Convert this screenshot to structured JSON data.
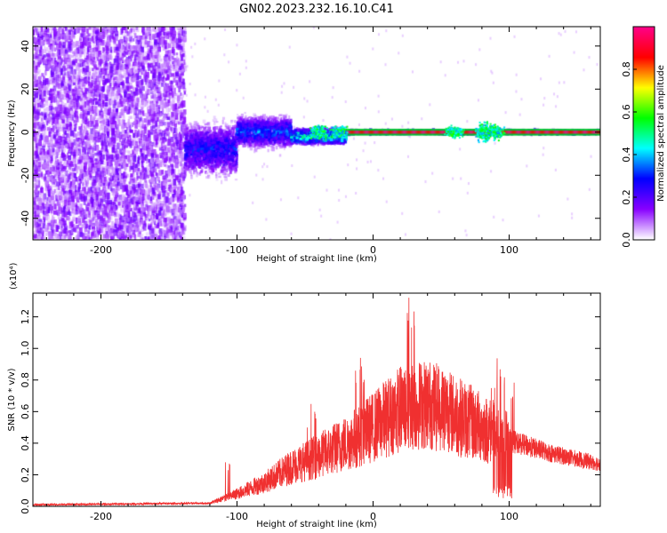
{
  "figure": {
    "title": "GN02.2023.232.16.10.C41"
  },
  "chart_data": [
    {
      "type": "heatmap",
      "xlabel": "Height of straight line (km)",
      "ylabel": "Frequency (Hz)",
      "xlim": [
        -250,
        167
      ],
      "ylim": [
        -50,
        49
      ],
      "xticks": [
        -200,
        -100,
        0,
        100
      ],
      "yticks": [
        -40,
        -20,
        0,
        20,
        40
      ],
      "colorbar": {
        "label": "Normalized spectral amplitude",
        "range": [
          0.0,
          1.0
        ],
        "ticks": [
          "0.0",
          "0.2",
          "0.4",
          "0.6",
          "0.8"
        ],
        "tick_values": [
          0.0,
          0.2,
          0.4,
          0.6,
          0.8
        ],
        "colors": [
          "#ffffff",
          "#8800ff",
          "#0000ff",
          "#00ffff",
          "#00ff00",
          "#ffff00",
          "#ff0000",
          "#ff0088"
        ]
      },
      "regions": [
        {
          "x": [
            -250,
            -138
          ],
          "freq_spread": 50,
          "amplitude": 0.1,
          "description": "noise"
        },
        {
          "x": [
            -138,
            -100
          ],
          "freq_center": -8,
          "freq_spread": 14,
          "amplitude": 0.25
        },
        {
          "x": [
            -100,
            -60
          ],
          "freq_center": 0,
          "freq_spread": 8,
          "amplitude": 0.3
        },
        {
          "x": [
            -60,
            -20
          ],
          "freq_center": -2,
          "freq_spread": 4,
          "amplitude": 0.45
        },
        {
          "x": [
            -20,
            167
          ],
          "freq_center": 0,
          "freq_spread": 1,
          "amplitude": 0.95
        }
      ]
    },
    {
      "type": "line",
      "xlabel": "Height of straight line (km)",
      "ylabel": "SNR (10 * v/v)",
      "y_multiplier": "(x10⁴)",
      "xlim": [
        -250,
        167
      ],
      "ylim": [
        0,
        1.35
      ],
      "xticks": [
        -200,
        -100,
        0,
        100
      ],
      "yticks": [
        "0.0",
        "0.2",
        "0.4",
        "0.6",
        "0.8",
        "1.0",
        "1.2"
      ],
      "ytick_values": [
        0.0,
        0.2,
        0.4,
        0.6,
        0.8,
        1.0,
        1.2
      ],
      "color": "#f03030",
      "envelope": [
        {
          "x": -250,
          "y": 0.01
        },
        {
          "x": -120,
          "y": 0.02
        },
        {
          "x": -100,
          "y": 0.08
        },
        {
          "x": -80,
          "y": 0.15
        },
        {
          "x": -60,
          "y": 0.25
        },
        {
          "x": -40,
          "y": 0.32
        },
        {
          "x": -20,
          "y": 0.4
        },
        {
          "x": 0,
          "y": 0.5
        },
        {
          "x": 20,
          "y": 0.62
        },
        {
          "x": 40,
          "y": 0.65
        },
        {
          "x": 60,
          "y": 0.58
        },
        {
          "x": 80,
          "y": 0.5
        },
        {
          "x": 100,
          "y": 0.42
        },
        {
          "x": 130,
          "y": 0.34
        },
        {
          "x": 167,
          "y": 0.27
        }
      ],
      "peaks": [
        {
          "x": -105,
          "y": 0.3
        },
        {
          "x": -45,
          "y": 0.65
        },
        {
          "x": -10,
          "y": 0.95
        },
        {
          "x": 28,
          "y": 1.33
        },
        {
          "x": 52,
          "y": 0.72
        },
        {
          "x": 90,
          "y": 0.95
        },
        {
          "x": 100,
          "y": 0.9
        }
      ],
      "dip": {
        "x": [
          88,
          102
        ],
        "y": 0.05
      }
    }
  ]
}
